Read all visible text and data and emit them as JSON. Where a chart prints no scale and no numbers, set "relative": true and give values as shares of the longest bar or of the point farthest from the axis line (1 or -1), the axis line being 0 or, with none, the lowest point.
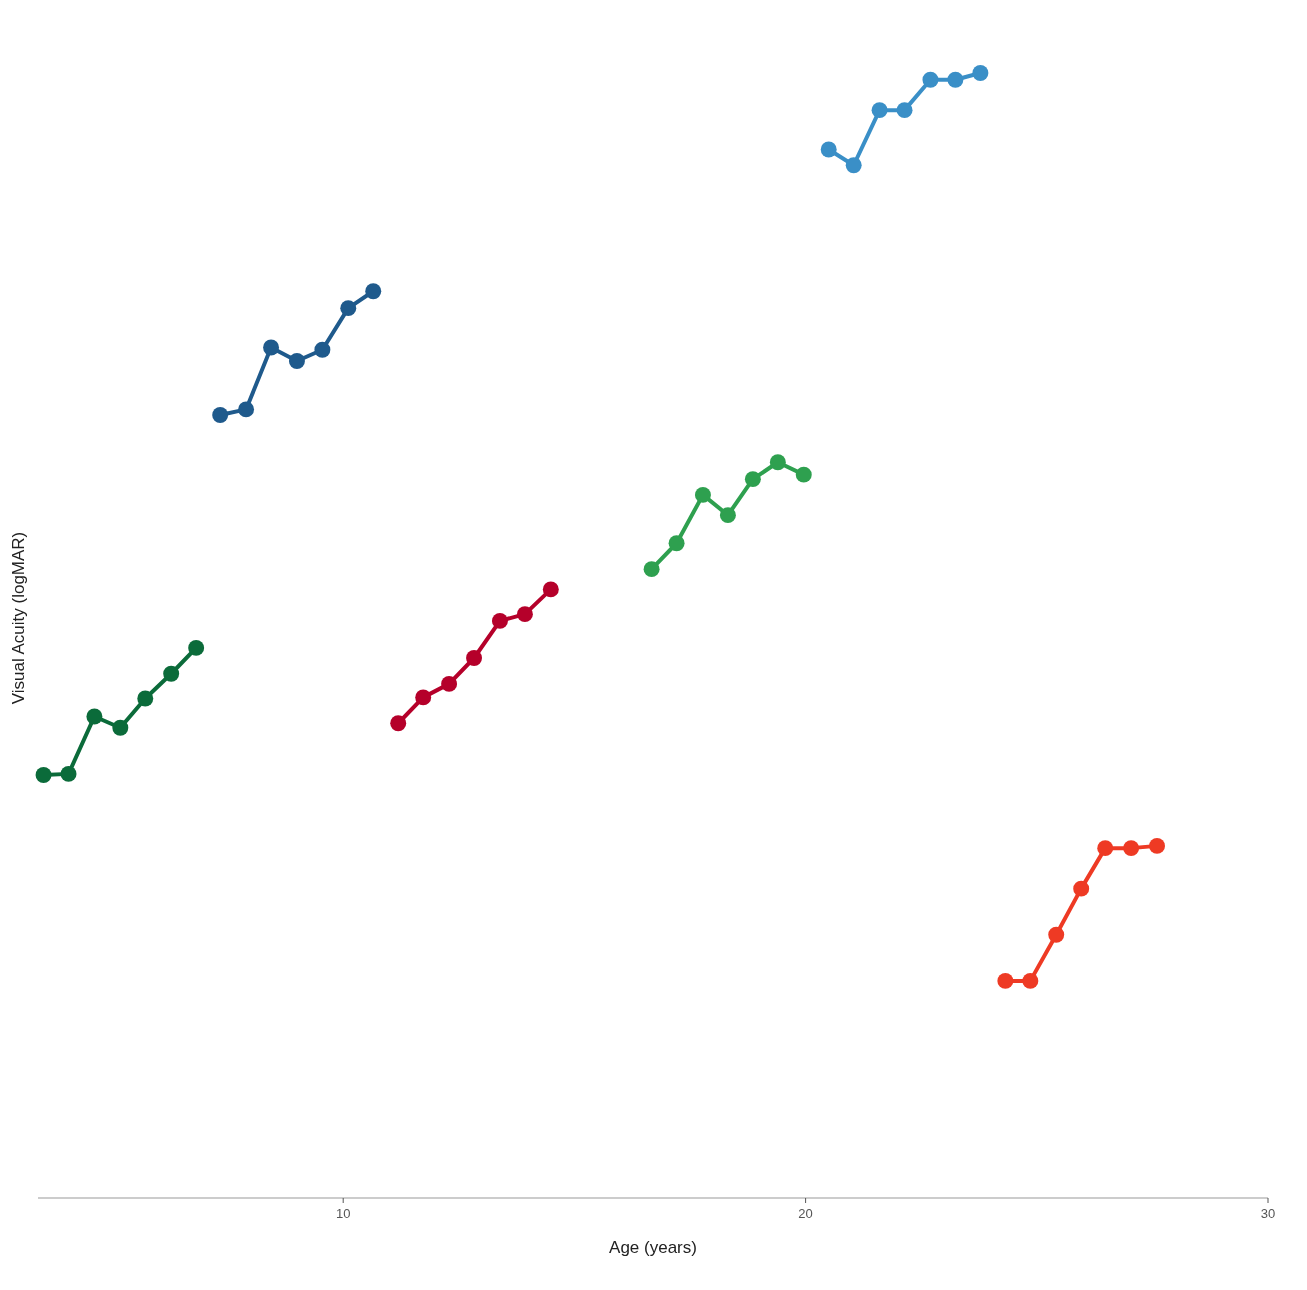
{
  "chart_data": {
    "type": "line",
    "xlabel": "Age (years)",
    "ylabel": "Visual Acuity (logMAR)",
    "relative": true,
    "marker": "circle",
    "line_style": "solid",
    "xlim": [
      3.4,
      30
    ],
    "xticks": [
      10,
      20,
      30
    ],
    "series": [
      {
        "color": "#0b6b3a",
        "x": [
          3.52,
          4.06,
          4.62,
          5.18,
          5.72,
          6.28,
          6.82
        ],
        "values": [
          0.376,
          0.377,
          0.428,
          0.418,
          0.444,
          0.466,
          0.489
        ]
      },
      {
        "color": "#1f5a8c",
        "x": [
          7.34,
          7.9,
          8.44,
          9.0,
          9.55,
          10.11,
          10.65
        ],
        "values": [
          0.696,
          0.701,
          0.756,
          0.744,
          0.754,
          0.791,
          0.806
        ]
      },
      {
        "color": "#b5002a",
        "x": [
          11.19,
          11.73,
          12.29,
          12.83,
          13.39,
          13.93,
          14.49
        ],
        "values": [
          0.422,
          0.445,
          0.457,
          0.48,
          0.513,
          0.519,
          0.541
        ]
      },
      {
        "color": "#2ea04f",
        "x": [
          16.67,
          17.21,
          17.78,
          18.32,
          18.86,
          19.4,
          19.96
        ],
        "values": [
          0.559,
          0.582,
          0.625,
          0.607,
          0.639,
          0.654,
          0.643
        ]
      },
      {
        "color": "#3a8fc7",
        "x": [
          20.5,
          21.04,
          21.6,
          22.14,
          22.7,
          23.24,
          23.78
        ],
        "values": [
          0.932,
          0.918,
          0.967,
          0.967,
          0.994,
          0.994,
          1.0
        ]
      },
      {
        "color": "#ee3a24",
        "x": [
          24.32,
          24.86,
          25.42,
          25.96,
          26.48,
          27.04,
          27.6
        ],
        "values": [
          0.193,
          0.193,
          0.234,
          0.275,
          0.311,
          0.311,
          0.313
        ]
      }
    ]
  }
}
